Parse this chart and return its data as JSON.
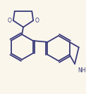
{
  "bg_color": "#faf6ec",
  "line_color": "#3a3a7a",
  "lw": 1.3,
  "figsize": [
    1.22,
    1.34
  ],
  "dpi": 100,
  "xlim": [
    0,
    122
  ],
  "ylim": [
    0,
    134
  ]
}
